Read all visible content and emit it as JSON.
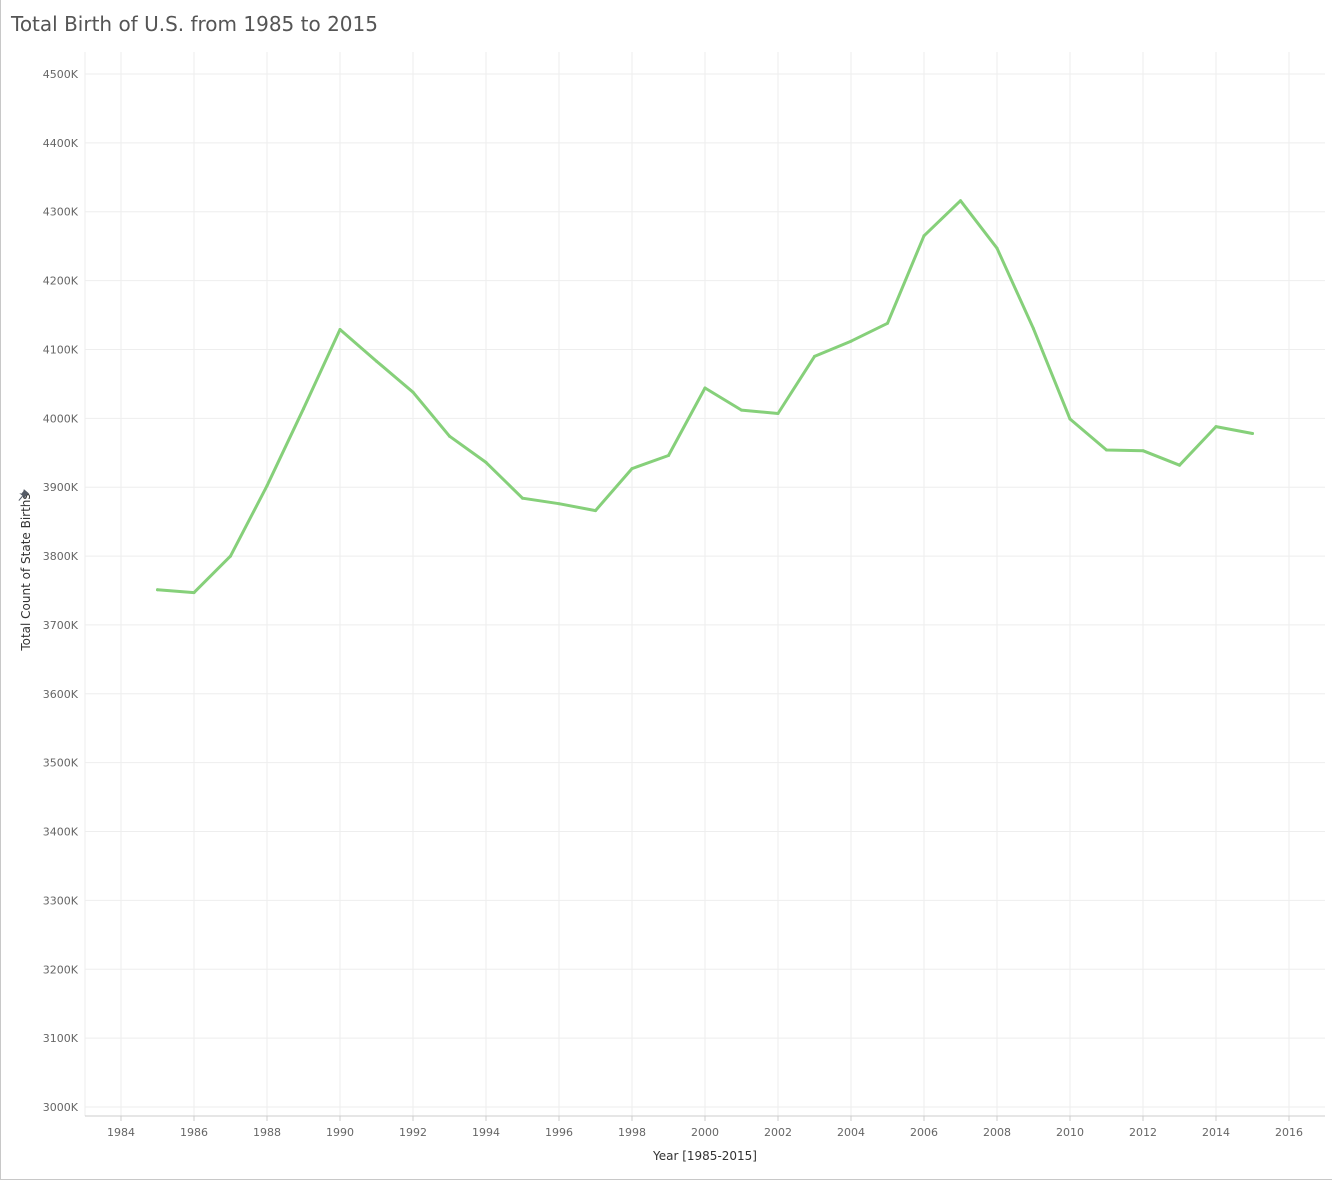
{
  "title": "Total Birth of U.S. from 1985 to 2015",
  "colors": {
    "line": "#86d07a",
    "grid": "#eeeeee",
    "axis": "#cccccc"
  },
  "icons": {
    "ylabel_icon": "pin-icon"
  },
  "chart_data": {
    "type": "line",
    "title": "Total Birth of U.S. from 1985 to 2015",
    "xlabel": "Year [1985-2015]",
    "ylabel": "Total Count of State Births",
    "xlim": [
      1983,
      2017
    ],
    "ylim": [
      3000,
      4500
    ],
    "y_unit_suffix": "K",
    "grid": true,
    "x_ticks": [
      1984,
      1986,
      1988,
      1990,
      1992,
      1994,
      1996,
      1998,
      2000,
      2002,
      2004,
      2006,
      2008,
      2010,
      2012,
      2014,
      2016
    ],
    "y_ticks": [
      3000,
      3100,
      3200,
      3300,
      3400,
      3500,
      3600,
      3700,
      3800,
      3900,
      4000,
      4100,
      4200,
      4300,
      4400,
      4500
    ],
    "x_tick_labels": [
      "1984",
      "1986",
      "1988",
      "1990",
      "1992",
      "1994",
      "1996",
      "1998",
      "2000",
      "2002",
      "2004",
      "2006",
      "2008",
      "2010",
      "2012",
      "2014",
      "2016"
    ],
    "y_tick_labels": [
      "3000K",
      "3100K",
      "3200K",
      "3300K",
      "3400K",
      "3500K",
      "3600K",
      "3700K",
      "3800K",
      "3900K",
      "4000K",
      "4100K",
      "4200K",
      "4300K",
      "4400K",
      "4500K"
    ],
    "series": [
      {
        "x": [
          1985,
          1986,
          1987,
          1988,
          1989,
          1990,
          1991,
          1992,
          1993,
          1994,
          1995,
          1996,
          1997,
          1998,
          1999,
          2000,
          2001,
          2002,
          2003,
          2004,
          2005,
          2006,
          2007,
          2008,
          2009,
          2010,
          2011,
          2012,
          2013,
          2014,
          2015
        ],
        "values": [
          3751,
          3747,
          3800,
          3902,
          4014,
          4129,
          4083,
          4038,
          3974,
          3936,
          3884,
          3876,
          3866,
          3927,
          3946,
          4044,
          4012,
          4007,
          4090,
          4112,
          4138,
          4265,
          4316,
          4247,
          4130,
          3999,
          3954,
          3953,
          3932,
          3988,
          3978
        ]
      }
    ]
  }
}
